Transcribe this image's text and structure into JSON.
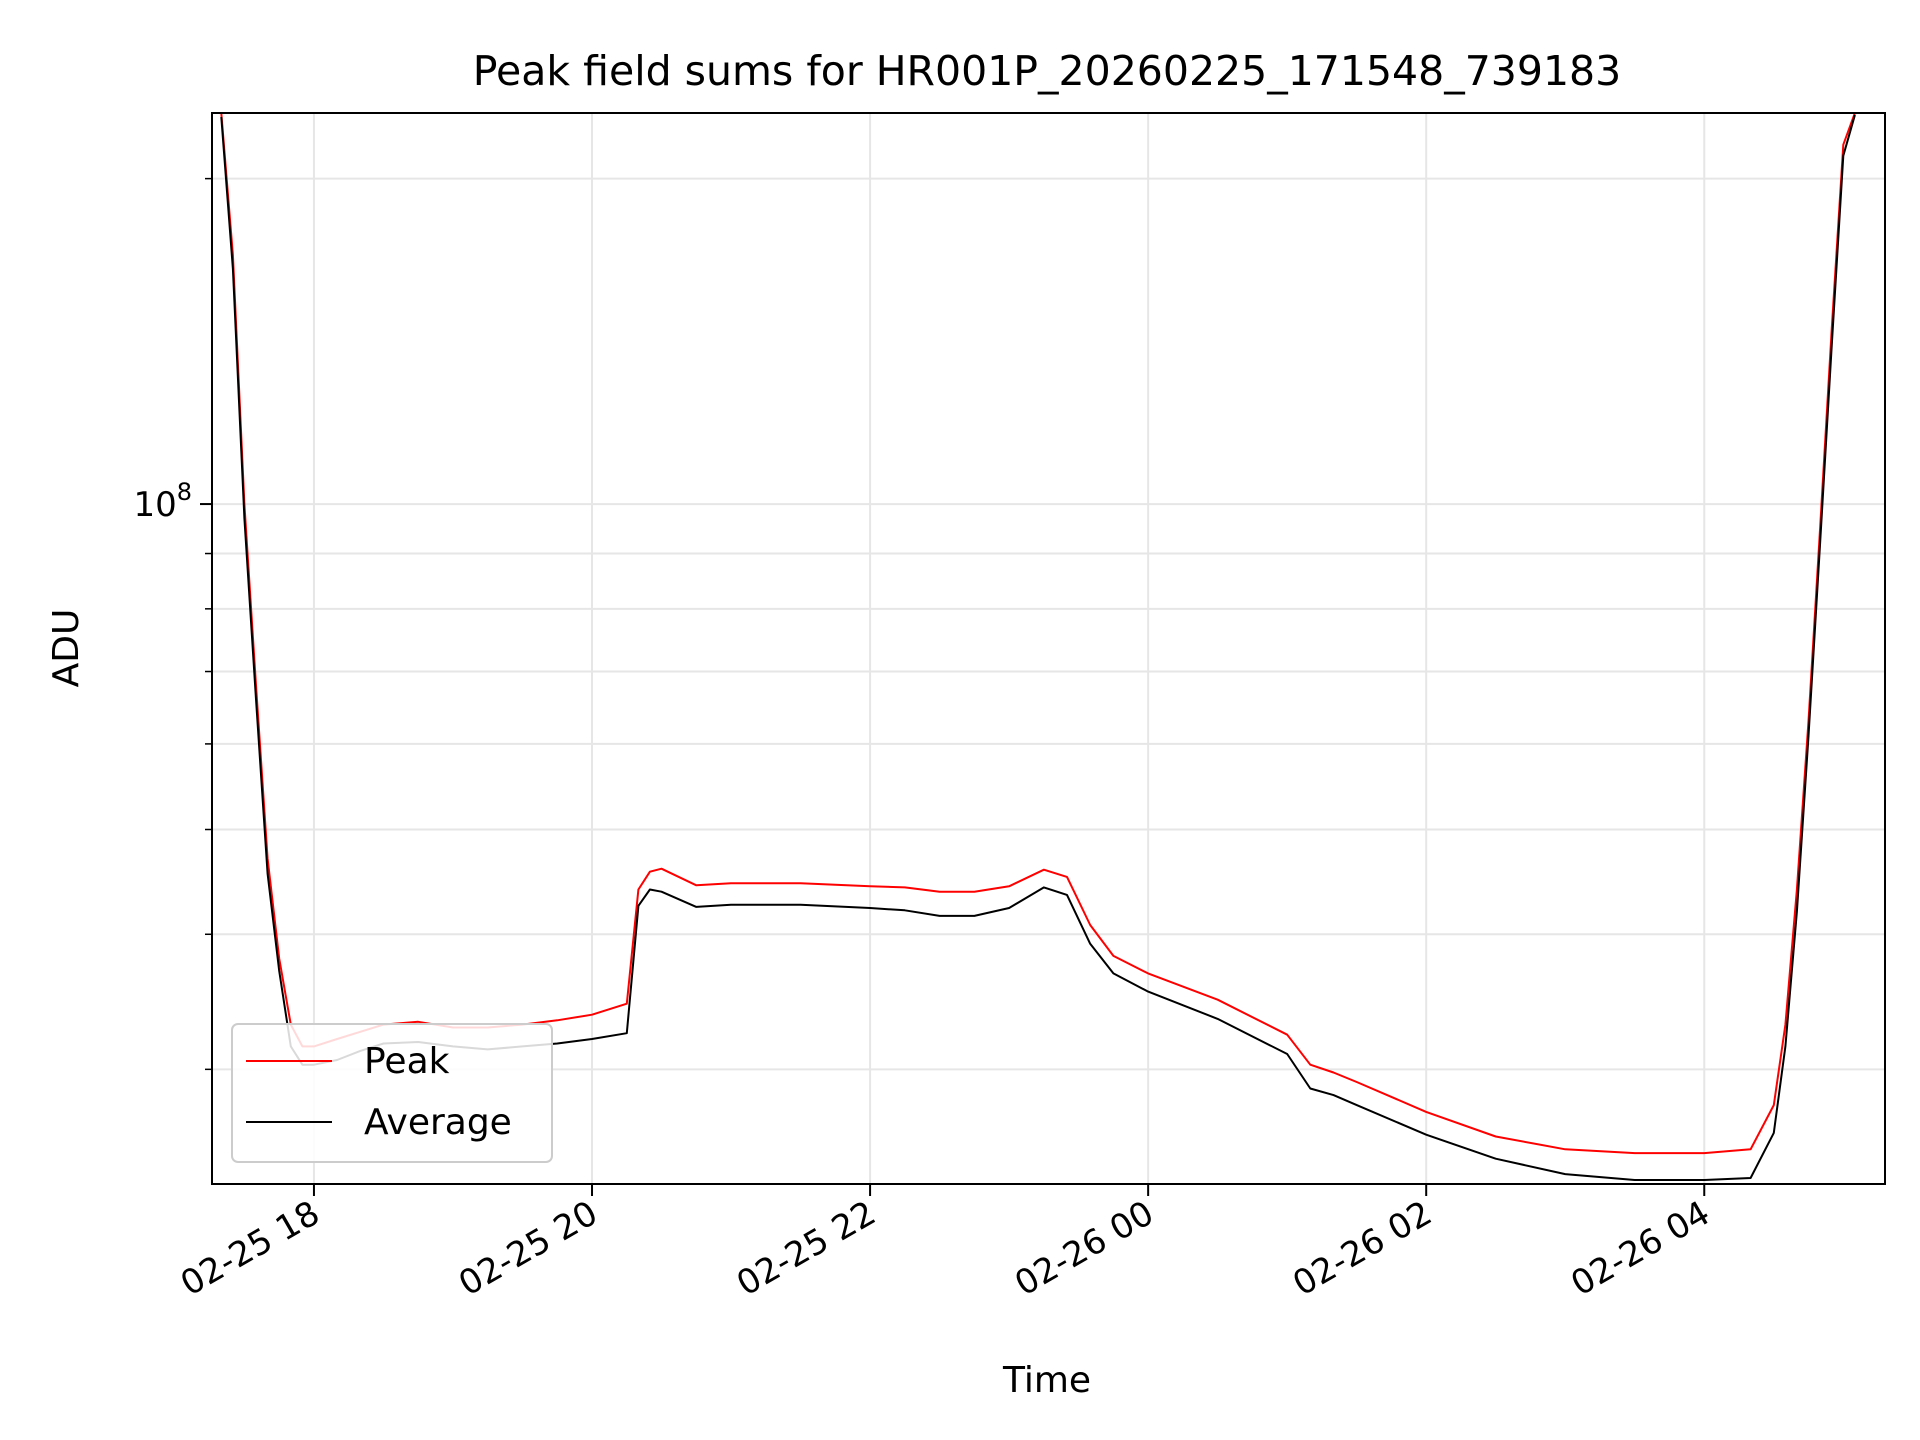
{
  "chart_data": {
    "type": "line",
    "title": "Peak field sums for HR001P_20260225_171548_739183",
    "xlabel": "Time",
    "ylabel": "ADU",
    "y_scale": "log",
    "ylim": [
      23500000,
      230000000
    ],
    "x_range": [
      "02-25 17:16",
      "02-26 05:18"
    ],
    "x_ticks": [
      "02-25 18",
      "02-25 20",
      "02-25 22",
      "02-26 00",
      "02-26 02",
      "02-26 04"
    ],
    "y_tick_labels": [
      {
        "base": "10",
        "exp": "8",
        "value": 100000000
      }
    ],
    "y_minor_ticks": [
      30000000,
      40000000,
      50000000,
      60000000,
      70000000,
      80000000,
      90000000,
      200000000
    ],
    "grid": true,
    "legend": {
      "position": "lower-left",
      "entries": [
        "Peak",
        "Average"
      ]
    },
    "series": [
      {
        "name": "Peak",
        "color": "#ff0000",
        "x": [
          "02-25 17:20",
          "02-25 17:25",
          "02-25 17:30",
          "02-25 17:35",
          "02-25 17:40",
          "02-25 17:45",
          "02-25 17:50",
          "02-25 17:55",
          "02-25 18:00",
          "02-25 18:10",
          "02-25 18:20",
          "02-25 18:30",
          "02-25 18:45",
          "02-25 19:00",
          "02-25 19:15",
          "02-25 19:30",
          "02-25 19:45",
          "02-25 20:00",
          "02-25 20:15",
          "02-25 20:20",
          "02-25 20:25",
          "02-25 20:30",
          "02-25 20:45",
          "02-25 21:00",
          "02-25 21:30",
          "02-25 22:00",
          "02-25 22:15",
          "02-25 22:30",
          "02-25 22:45",
          "02-25 23:00",
          "02-25 23:15",
          "02-25 23:25",
          "02-25 23:35",
          "02-25 23:45",
          "02-26 00:00",
          "02-26 00:30",
          "02-26 01:00",
          "02-26 01:10",
          "02-26 01:20",
          "02-26 01:30",
          "02-26 02:00",
          "02-26 02:30",
          "02-26 03:00",
          "02-26 03:30",
          "02-26 04:00",
          "02-26 04:20",
          "02-26 04:30",
          "02-26 04:35",
          "02-26 04:40",
          "02-26 04:45",
          "02-26 04:50",
          "02-26 04:55",
          "02-26 05:00",
          "02-26 05:05"
        ],
        "y": [
          230000000,
          170000000,
          100000000,
          68000000,
          47000000,
          38000000,
          33000000,
          31500000,
          31500000,
          32000000,
          32500000,
          33000000,
          33200000,
          32800000,
          32800000,
          33000000,
          33300000,
          33700000,
          34500000,
          44000000,
          45700000,
          46000000,
          44400000,
          44600000,
          44600000,
          44300000,
          44200000,
          43800000,
          43800000,
          44300000,
          45900000,
          45200000,
          40800000,
          38200000,
          36800000,
          34800000,
          32300000,
          30300000,
          29800000,
          29200000,
          27400000,
          26000000,
          25300000,
          25100000,
          25100000,
          25300000,
          27800000,
          33000000,
          44000000,
          63000000,
          95000000,
          145000000,
          215000000,
          230000000
        ]
      },
      {
        "name": "Average",
        "color": "#000000",
        "x": [
          "02-25 17:20",
          "02-25 17:25",
          "02-25 17:30",
          "02-25 17:35",
          "02-25 17:40",
          "02-25 17:45",
          "02-25 17:50",
          "02-25 17:55",
          "02-25 18:00",
          "02-25 18:10",
          "02-25 18:20",
          "02-25 18:30",
          "02-25 18:45",
          "02-25 19:00",
          "02-25 19:15",
          "02-25 19:30",
          "02-25 19:45",
          "02-25 20:00",
          "02-25 20:15",
          "02-25 20:20",
          "02-25 20:25",
          "02-25 20:30",
          "02-25 20:45",
          "02-25 21:00",
          "02-25 21:30",
          "02-25 22:00",
          "02-25 22:15",
          "02-25 22:30",
          "02-25 22:45",
          "02-25 23:00",
          "02-25 23:15",
          "02-25 23:25",
          "02-25 23:35",
          "02-25 23:45",
          "02-26 00:00",
          "02-26 00:30",
          "02-26 01:00",
          "02-26 01:10",
          "02-26 01:20",
          "02-26 01:30",
          "02-26 02:00",
          "02-26 02:30",
          "02-26 03:00",
          "02-26 03:30",
          "02-26 04:00",
          "02-26 04:20",
          "02-26 04:30",
          "02-26 04:35",
          "02-26 04:40",
          "02-26 04:45",
          "02-26 04:50",
          "02-26 04:55",
          "02-26 05:00",
          "02-26 05:05"
        ],
        "y": [
          228000000,
          165000000,
          97000000,
          66000000,
          45500000,
          37000000,
          31500000,
          30300000,
          30300000,
          30600000,
          31200000,
          31700000,
          31800000,
          31500000,
          31300000,
          31500000,
          31700000,
          32000000,
          32400000,
          42500000,
          44000000,
          43800000,
          42400000,
          42600000,
          42600000,
          42300000,
          42100000,
          41600000,
          41600000,
          42300000,
          44200000,
          43500000,
          39200000,
          36800000,
          35400000,
          33400000,
          31000000,
          28800000,
          28400000,
          27800000,
          26100000,
          24800000,
          24000000,
          23700000,
          23700000,
          23800000,
          26200000,
          31500000,
          42000000,
          61000000,
          92000000,
          140000000,
          210000000,
          229000000
        ]
      }
    ]
  }
}
